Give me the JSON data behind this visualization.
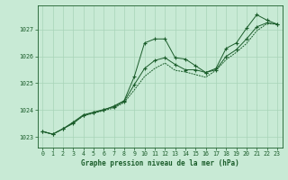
{
  "title": "Graphe pression niveau de la mer (hPa)",
  "bg_color": "#c8ead5",
  "grid_color": "#a8d4b8",
  "line_color": "#1a5c2a",
  "xlim": [
    -0.5,
    23.5
  ],
  "ylim": [
    1022.6,
    1027.9
  ],
  "xticks": [
    0,
    1,
    2,
    3,
    4,
    5,
    6,
    7,
    8,
    9,
    10,
    11,
    12,
    13,
    14,
    15,
    16,
    17,
    18,
    19,
    20,
    21,
    22,
    23
  ],
  "yticks": [
    1023,
    1024,
    1025,
    1026,
    1027
  ],
  "series1_x": [
    0,
    1,
    2,
    3,
    4,
    5,
    6,
    7,
    8,
    9,
    10,
    11,
    12,
    13,
    14,
    15,
    16,
    17,
    18,
    19,
    20,
    21,
    22,
    23
  ],
  "series1_y": [
    1023.2,
    1023.1,
    1023.3,
    1023.5,
    1023.8,
    1023.9,
    1024.0,
    1024.15,
    1024.35,
    1025.25,
    1026.5,
    1026.65,
    1026.65,
    1025.95,
    1025.9,
    1025.65,
    1025.4,
    1025.55,
    1026.3,
    1026.5,
    1027.05,
    1027.55,
    1027.35,
    1027.2
  ],
  "series2_x": [
    0,
    1,
    2,
    3,
    4,
    5,
    6,
    7,
    8,
    9,
    10,
    11,
    12,
    13,
    14,
    15,
    16,
    17,
    18,
    19,
    20,
    21,
    22,
    23
  ],
  "series2_y": [
    1023.2,
    1023.1,
    1023.3,
    1023.55,
    1023.82,
    1023.92,
    1024.02,
    1024.12,
    1024.32,
    1024.95,
    1025.55,
    1025.85,
    1025.95,
    1025.7,
    1025.5,
    1025.5,
    1025.4,
    1025.5,
    1026.0,
    1026.25,
    1026.65,
    1027.1,
    1027.25,
    1027.2
  ],
  "series3_x": [
    0,
    1,
    2,
    3,
    4,
    5,
    6,
    7,
    8,
    9,
    10,
    11,
    12,
    13,
    14,
    15,
    16,
    17,
    18,
    19,
    20,
    21,
    22,
    23
  ],
  "series3_y": [
    1023.2,
    1023.1,
    1023.3,
    1023.52,
    1023.78,
    1023.88,
    1023.98,
    1024.08,
    1024.28,
    1024.75,
    1025.25,
    1025.55,
    1025.75,
    1025.48,
    1025.42,
    1025.32,
    1025.22,
    1025.48,
    1025.88,
    1026.15,
    1026.48,
    1026.95,
    1027.22,
    1027.2
  ],
  "xlabel_fontsize": 5.5,
  "tick_fontsize": 4.8,
  "linewidth": 0.7,
  "markersize": 2.2
}
